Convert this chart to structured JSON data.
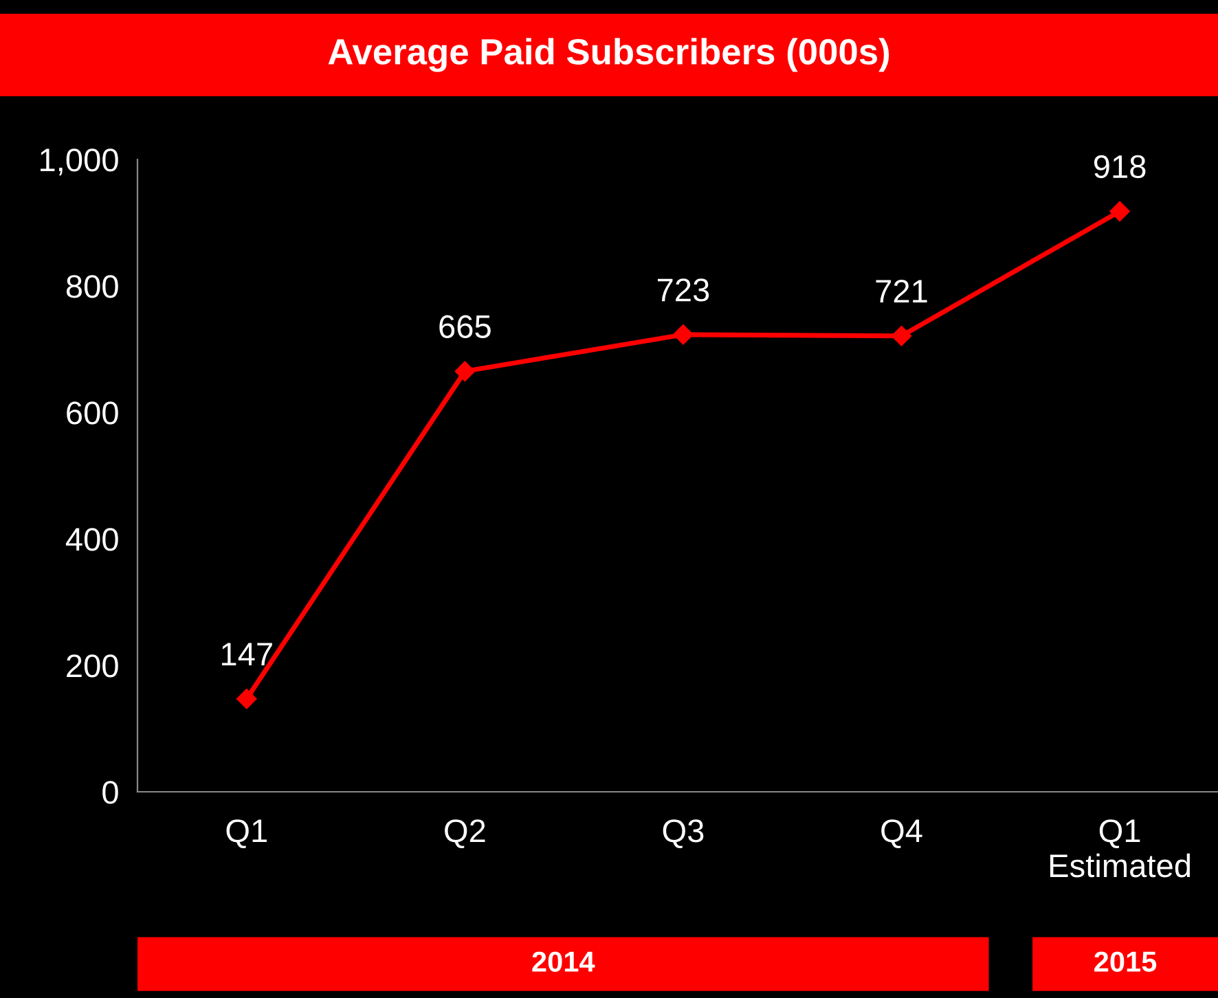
{
  "chart_data": {
    "type": "line",
    "title": "Average Paid Subscribers (000s)",
    "categories": [
      "Q1",
      "Q2",
      "Q3",
      "Q4",
      "Q1\nEstimated"
    ],
    "series": [
      {
        "color": "#ff0000",
        "values": [
          147,
          665,
          723,
          721,
          918
        ]
      }
    ],
    "ylim": [
      0,
      1000
    ],
    "yticks": [
      0,
      200,
      400,
      600,
      800,
      {
        "value": 1000,
        "label": "1,000"
      }
    ],
    "data_labels": true,
    "marker": "diamond",
    "line_style": "solid",
    "grid": false,
    "annotations": [
      "2014",
      "2015"
    ]
  }
}
